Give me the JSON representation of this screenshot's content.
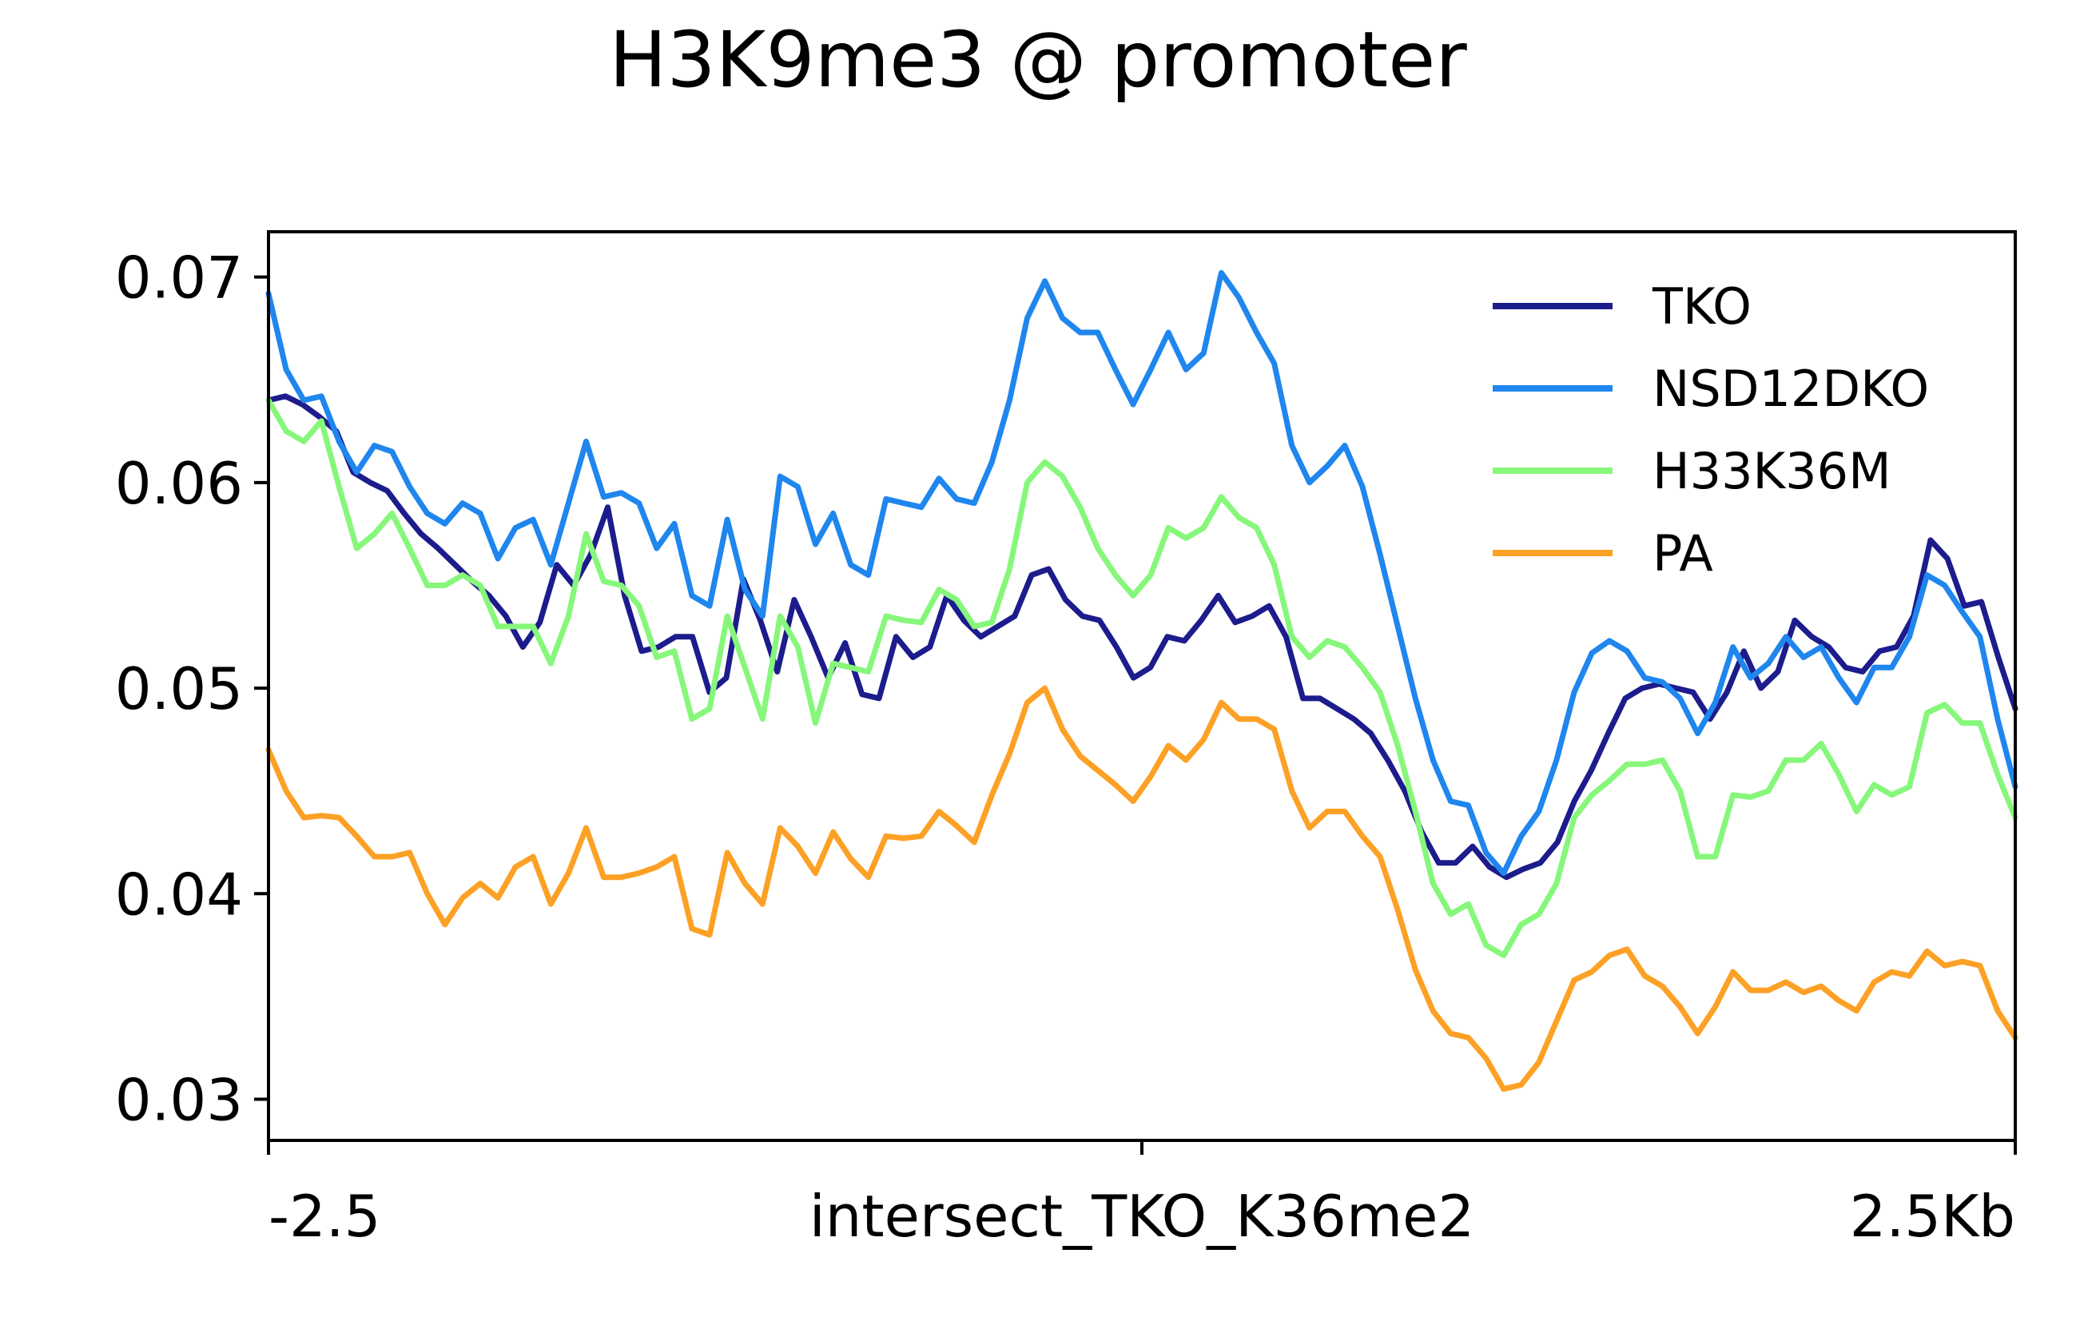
{
  "chart_data": {
    "type": "line",
    "title": "H3K9me3 @ promoter",
    "xlabel": "",
    "ylabel": "",
    "x_tick_labels": [
      "-2.5",
      "intersect_TKO_K36me2",
      "2.5Kb"
    ],
    "x_ticks": [
      0,
      50,
      100
    ],
    "xlim": [
      0,
      100
    ],
    "y_ticks": [
      0.03,
      0.04,
      0.05,
      0.06,
      0.07
    ],
    "y_tick_labels": [
      "0.03",
      "0.04",
      "0.05",
      "0.06",
      "0.07"
    ],
    "ylim": [
      0.028,
      0.0722
    ],
    "grid": false,
    "legend_position": "top-right",
    "series": [
      {
        "name": "TKO",
        "color": "#1c1c8c",
        "values": [
          0.064,
          0.0642,
          0.0638,
          0.0632,
          0.0625,
          0.0605,
          0.06,
          0.0596,
          0.0585,
          0.0575,
          0.0568,
          0.056,
          0.0552,
          0.0545,
          0.0535,
          0.052,
          0.0532,
          0.056,
          0.055,
          0.0565,
          0.0588,
          0.0545,
          0.0518,
          0.052,
          0.0525,
          0.0525,
          0.0498,
          0.0505,
          0.0553,
          0.0533,
          0.0508,
          0.0543,
          0.0525,
          0.0505,
          0.0522,
          0.0497,
          0.0495,
          0.0525,
          0.0515,
          0.052,
          0.0545,
          0.0533,
          0.0525,
          0.053,
          0.0535,
          0.0555,
          0.0558,
          0.0543,
          0.0535,
          0.0533,
          0.052,
          0.0505,
          0.051,
          0.0525,
          0.0523,
          0.0533,
          0.0545,
          0.0532,
          0.0535,
          0.054,
          0.0525,
          0.0495,
          0.0495,
          0.049,
          0.0485,
          0.0478,
          0.0465,
          0.045,
          0.043,
          0.0415,
          0.0415,
          0.0423,
          0.0413,
          0.0408,
          0.0412,
          0.0415,
          0.0425,
          0.0445,
          0.046,
          0.0478,
          0.0495,
          0.05,
          0.0502,
          0.05,
          0.0498,
          0.0485,
          0.0498,
          0.0518,
          0.05,
          0.0508,
          0.0533,
          0.0525,
          0.052,
          0.051,
          0.0508,
          0.0518,
          0.052,
          0.0535,
          0.0572,
          0.0563,
          0.054,
          0.0542,
          0.0515,
          0.049
        ]
      },
      {
        "name": "NSD12DKO",
        "color": "#1f86ee",
        "values": [
          0.0692,
          0.0655,
          0.064,
          0.0642,
          0.062,
          0.0605,
          0.0618,
          0.0615,
          0.0598,
          0.0585,
          0.058,
          0.059,
          0.0585,
          0.0563,
          0.0578,
          0.0582,
          0.056,
          0.059,
          0.062,
          0.0593,
          0.0595,
          0.059,
          0.0568,
          0.058,
          0.0545,
          0.054,
          0.0582,
          0.0548,
          0.0535,
          0.0603,
          0.0598,
          0.057,
          0.0585,
          0.056,
          0.0555,
          0.0592,
          0.059,
          0.0588,
          0.0602,
          0.0592,
          0.059,
          0.061,
          0.064,
          0.068,
          0.0698,
          0.068,
          0.0673,
          0.0673,
          0.0655,
          0.0638,
          0.0655,
          0.0673,
          0.0655,
          0.0663,
          0.0702,
          0.069,
          0.0673,
          0.0658,
          0.0618,
          0.06,
          0.0608,
          0.0618,
          0.0598,
          0.0565,
          0.053,
          0.0495,
          0.0465,
          0.0445,
          0.0443,
          0.042,
          0.041,
          0.0428,
          0.044,
          0.0465,
          0.0498,
          0.0517,
          0.0523,
          0.0518,
          0.0505,
          0.0503,
          0.0495,
          0.0478,
          0.0493,
          0.052,
          0.0505,
          0.0512,
          0.0525,
          0.0515,
          0.052,
          0.0505,
          0.0493,
          0.051,
          0.051,
          0.0525,
          0.0555,
          0.055,
          0.0537,
          0.0525,
          0.0485,
          0.0452
        ]
      },
      {
        "name": "H33K36M",
        "color": "#86f77a",
        "values": [
          0.064,
          0.0625,
          0.062,
          0.063,
          0.0598,
          0.0568,
          0.0575,
          0.0585,
          0.0568,
          0.055,
          0.055,
          0.0555,
          0.055,
          0.053,
          0.053,
          0.053,
          0.0512,
          0.0535,
          0.0575,
          0.0552,
          0.055,
          0.054,
          0.0515,
          0.0518,
          0.0485,
          0.049,
          0.0535,
          0.051,
          0.0485,
          0.0535,
          0.052,
          0.0483,
          0.0512,
          0.051,
          0.0508,
          0.0535,
          0.0533,
          0.0532,
          0.0548,
          0.0543,
          0.053,
          0.0532,
          0.0558,
          0.06,
          0.061,
          0.0603,
          0.0588,
          0.0568,
          0.0555,
          0.0545,
          0.0555,
          0.0578,
          0.0573,
          0.0578,
          0.0593,
          0.0583,
          0.0578,
          0.056,
          0.0525,
          0.0515,
          0.0523,
          0.052,
          0.051,
          0.0498,
          0.0472,
          0.044,
          0.0405,
          0.039,
          0.0395,
          0.0375,
          0.037,
          0.0385,
          0.039,
          0.0405,
          0.0437,
          0.0448,
          0.0455,
          0.0463,
          0.0463,
          0.0465,
          0.045,
          0.0418,
          0.0418,
          0.0448,
          0.0447,
          0.045,
          0.0465,
          0.0465,
          0.0473,
          0.0458,
          0.044,
          0.0453,
          0.0448,
          0.0452,
          0.0488,
          0.0492,
          0.0483,
          0.0483,
          0.0458,
          0.0437
        ]
      },
      {
        "name": "PA",
        "color": "#fca126",
        "values": [
          0.047,
          0.045,
          0.0437,
          0.0438,
          0.0437,
          0.0428,
          0.0418,
          0.0418,
          0.042,
          0.04,
          0.0385,
          0.0398,
          0.0405,
          0.0398,
          0.0413,
          0.0418,
          0.0395,
          0.041,
          0.0432,
          0.0408,
          0.0408,
          0.041,
          0.0413,
          0.0418,
          0.0383,
          0.038,
          0.042,
          0.0405,
          0.0395,
          0.0432,
          0.0423,
          0.041,
          0.043,
          0.0417,
          0.0408,
          0.0428,
          0.0427,
          0.0428,
          0.044,
          0.0433,
          0.0425,
          0.0448,
          0.0468,
          0.0493,
          0.05,
          0.048,
          0.0467,
          0.046,
          0.0453,
          0.0445,
          0.0457,
          0.0472,
          0.0465,
          0.0475,
          0.0493,
          0.0485,
          0.0485,
          0.048,
          0.045,
          0.0432,
          0.044,
          0.044,
          0.0428,
          0.0418,
          0.0392,
          0.0363,
          0.0343,
          0.0332,
          0.033,
          0.032,
          0.0305,
          0.0307,
          0.0318,
          0.0338,
          0.0358,
          0.0362,
          0.037,
          0.0373,
          0.036,
          0.0355,
          0.0345,
          0.0332,
          0.0345,
          0.0362,
          0.0353,
          0.0353,
          0.0357,
          0.0352,
          0.0355,
          0.0348,
          0.0343,
          0.0357,
          0.0362,
          0.036,
          0.0372,
          0.0365,
          0.0367,
          0.0365,
          0.0343,
          0.033
        ]
      }
    ]
  }
}
